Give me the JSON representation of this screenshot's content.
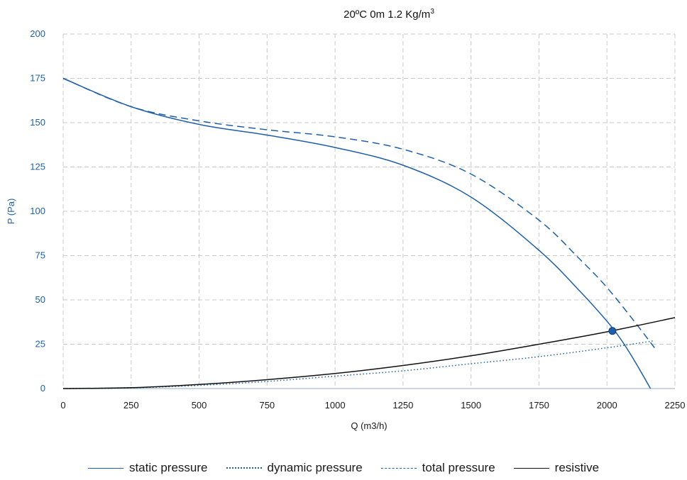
{
  "chart_data": {
    "type": "line",
    "title_main": "20ºC 0m 1.2 Kg/m",
    "title_sup": "3",
    "xlabel": "Q (m3/h)",
    "ylabel": "P (Pa)",
    "xlim": [
      0,
      2250
    ],
    "ylim": [
      0,
      200
    ],
    "xticks": [
      0,
      250,
      500,
      750,
      1000,
      1250,
      1500,
      1750,
      2000,
      2250
    ],
    "yticks": [
      0,
      25,
      50,
      75,
      100,
      125,
      150,
      175,
      200
    ],
    "grid": true,
    "legend_position": "bottom",
    "series": [
      {
        "name": "static pressure",
        "style": "solid",
        "color": "#1f5fa8",
        "x": [
          0,
          250,
          500,
          750,
          1000,
          1250,
          1500,
          1750,
          1900,
          2000,
          2050,
          2100,
          2160
        ],
        "y": [
          175,
          159,
          149,
          143,
          136,
          126,
          108,
          78,
          55,
          38,
          28,
          16,
          0
        ]
      },
      {
        "name": "dynamic pressure",
        "style": "dotted",
        "color": "#1f5fa8",
        "x": [
          0,
          250,
          500,
          750,
          1000,
          1250,
          1500,
          1750,
          2000,
          2175
        ],
        "y": [
          0,
          0.4,
          1.8,
          4,
          7,
          10,
          14,
          18,
          23,
          27
        ]
      },
      {
        "name": "total pressure",
        "style": "dashed",
        "color": "#1f5fa8",
        "x": [
          0,
          250,
          500,
          750,
          1000,
          1250,
          1500,
          1750,
          1900,
          2000,
          2100,
          2175
        ],
        "y": [
          175,
          159,
          151,
          146,
          142,
          135,
          121,
          95,
          73,
          57,
          38,
          23
        ]
      },
      {
        "name": "resistive",
        "style": "solid",
        "color": "#111111",
        "x": [
          0,
          250,
          500,
          750,
          1000,
          1250,
          1500,
          1750,
          2000,
          2250
        ],
        "y": [
          0,
          0.5,
          2.3,
          5,
          8.5,
          13,
          18.5,
          25,
          32,
          40
        ]
      }
    ],
    "operating_point": {
      "x": 2020,
      "y": 32.5,
      "color": "#1f5fa8"
    }
  }
}
